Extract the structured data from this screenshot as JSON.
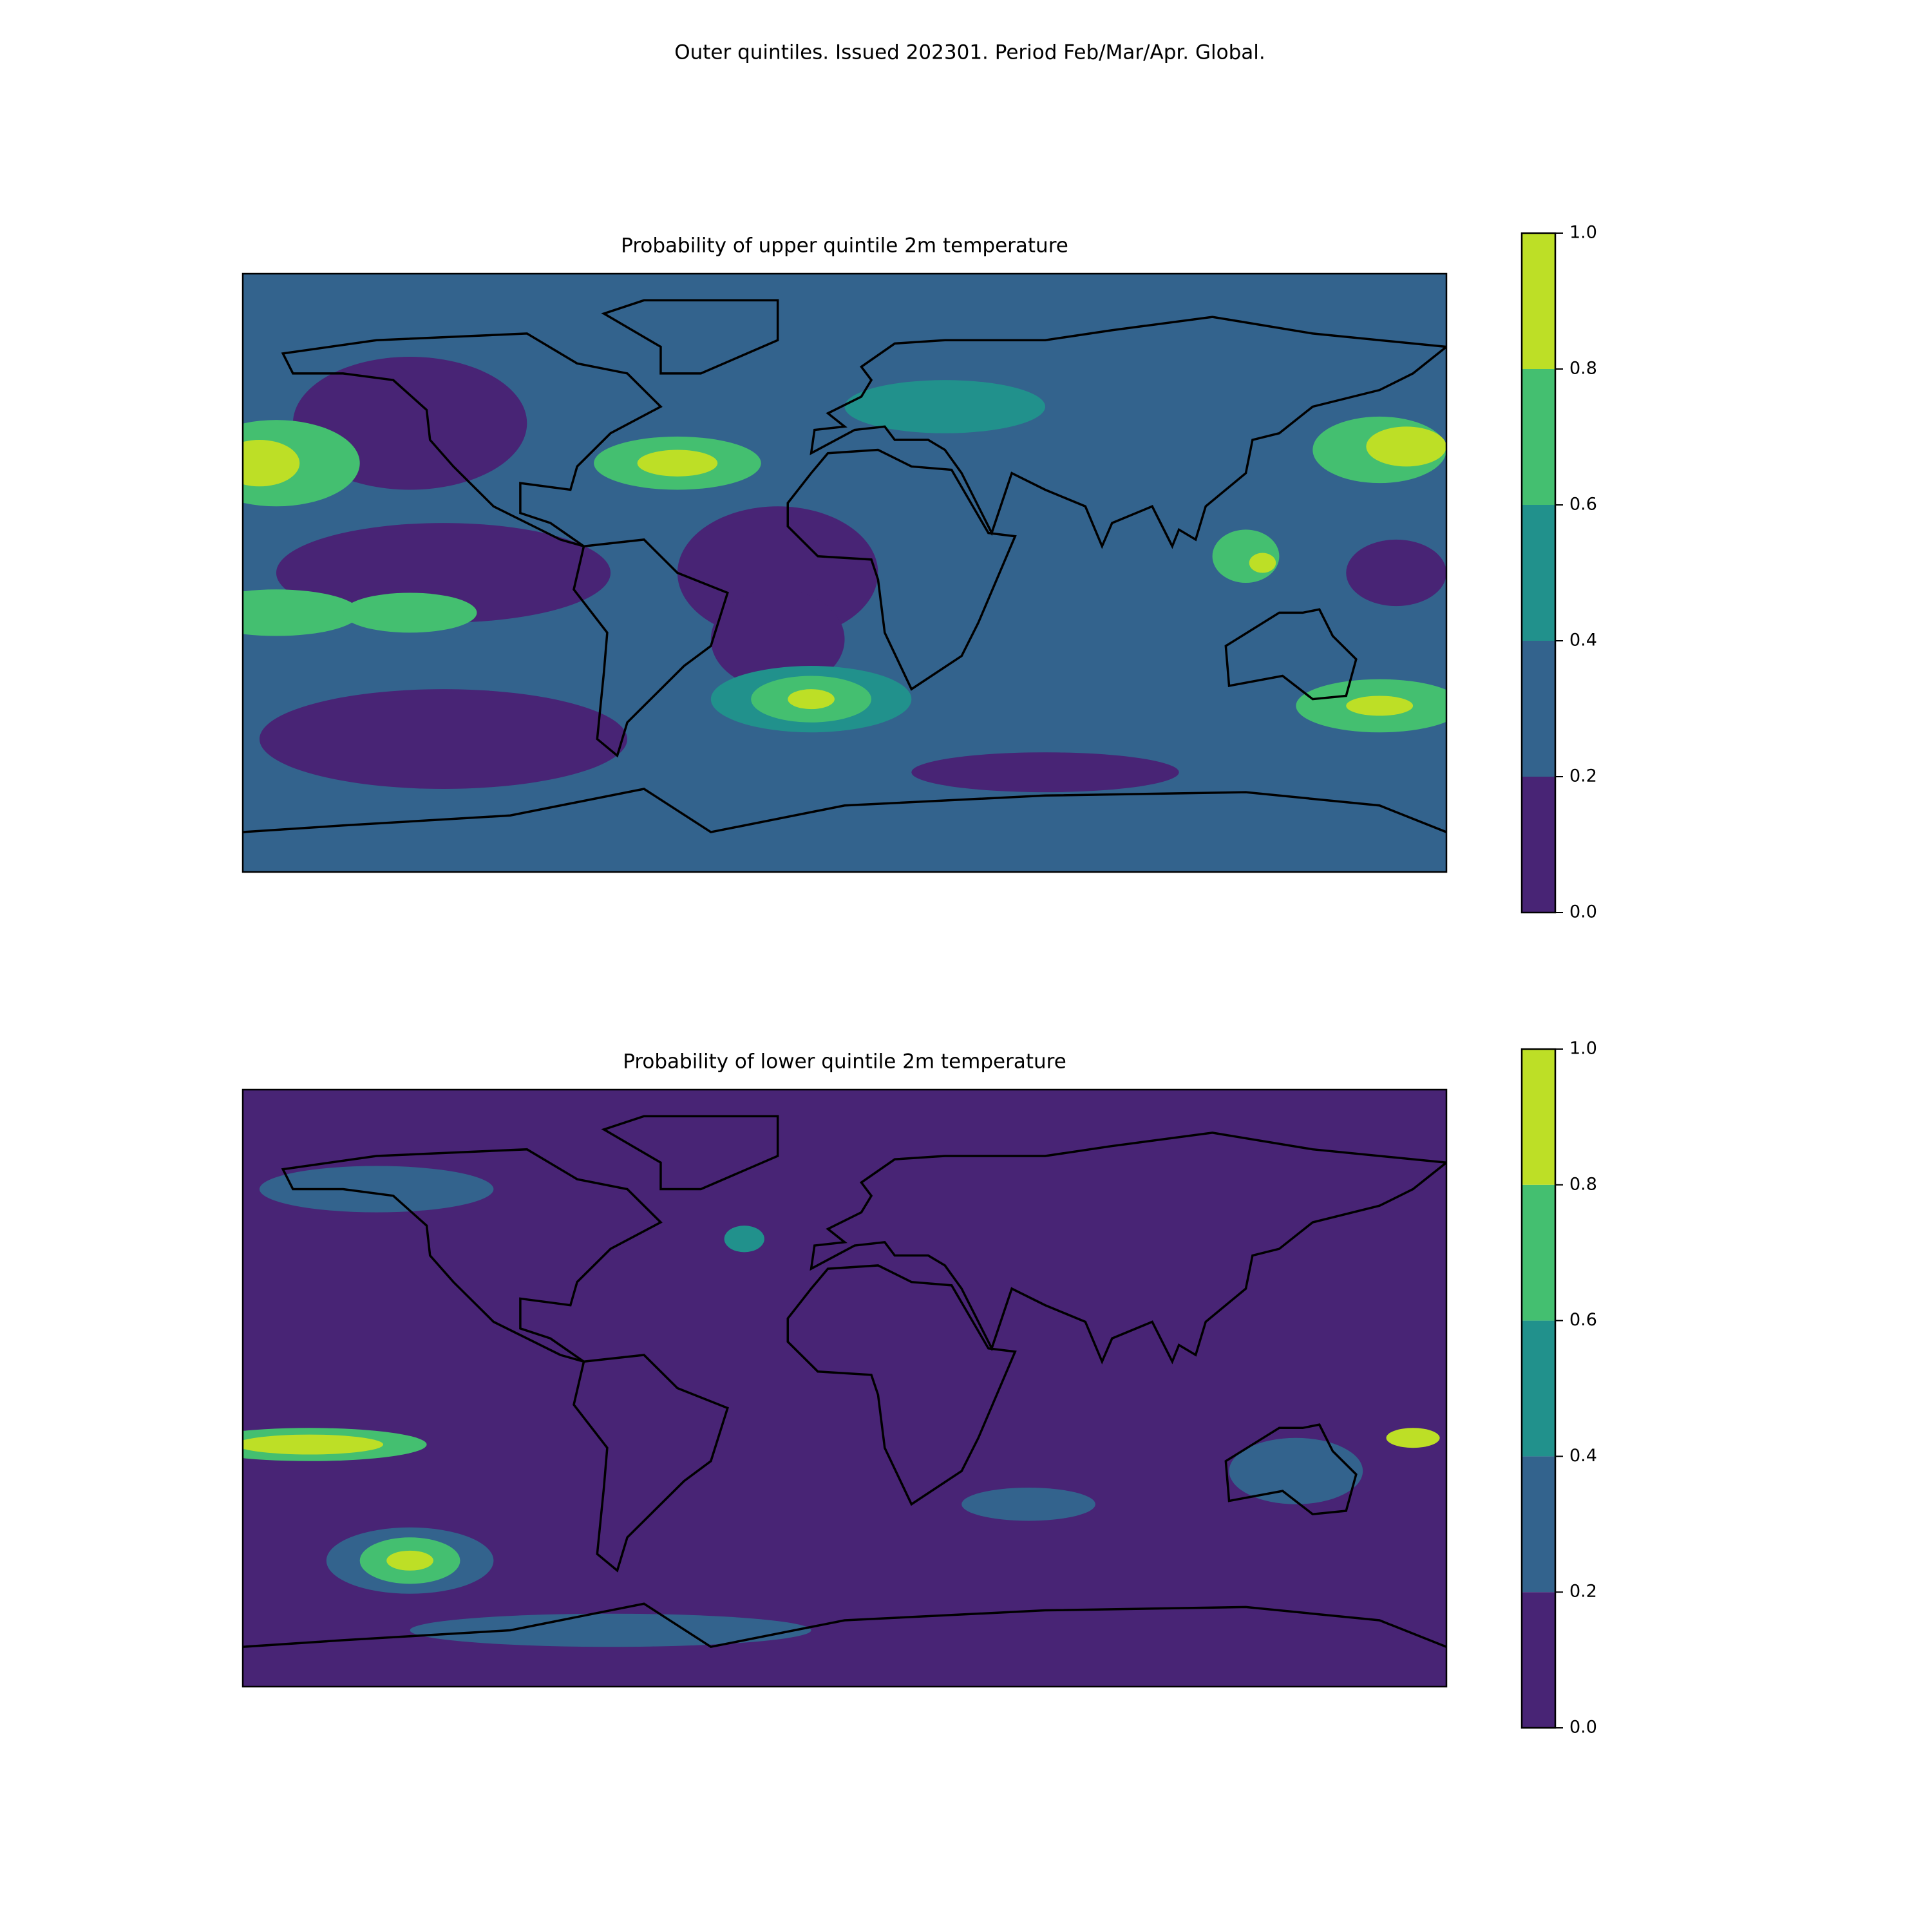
{
  "title": "Outer quintiles. Issued 202301. Period Feb/Mar/Apr. Global.",
  "panels": [
    {
      "title": "Probability of upper quintile 2m temperature",
      "colorbar": {
        "colors": [
          "#482475",
          "#33638d",
          "#21918c",
          "#44bf70",
          "#bddf26"
        ],
        "ticks": [
          {
            "value": 0,
            "label": "0.0"
          },
          0.2,
          0.4,
          0.6,
          0.8,
          {
            "value": 1,
            "label": "1.0"
          }
        ]
      }
    },
    {
      "title": "Probability of lower quintile 2m temperature",
      "colorbar": {
        "colors": [
          "#482475",
          "#33638d",
          "#21918c",
          "#44bf70",
          "#bddf26"
        ],
        "ticks": [
          {
            "value": 0,
            "label": "0.0"
          },
          0.2,
          0.4,
          0.6,
          0.8,
          {
            "value": 1,
            "label": "1.0"
          }
        ]
      }
    }
  ]
}
